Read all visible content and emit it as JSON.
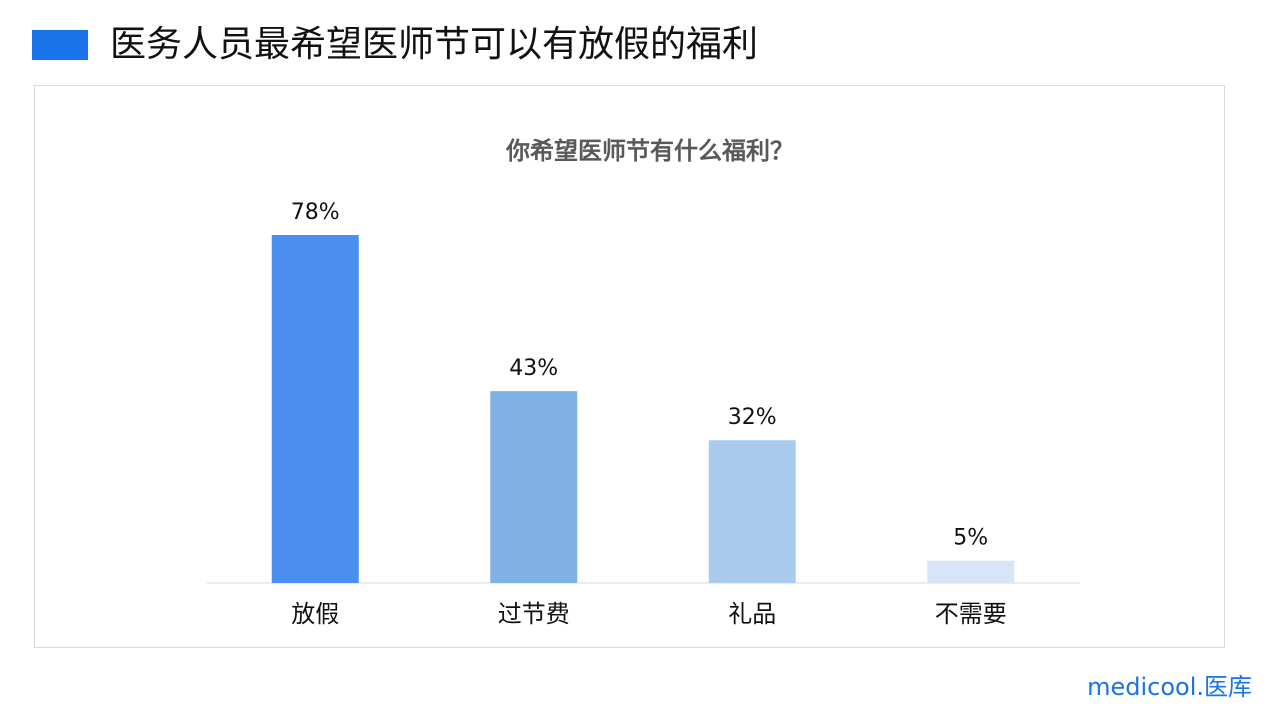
{
  "header": {
    "title": "医务人员最希望医师节可以有放假的福利"
  },
  "chart_data": {
    "type": "bar",
    "title": "你希望医师节有什么福利？",
    "categories": [
      "放假",
      "过节费",
      "礼品",
      "不需要"
    ],
    "values": [
      78,
      43,
      32,
      5
    ],
    "value_labels": [
      "78%",
      "43%",
      "32%",
      "5%"
    ],
    "colors": [
      "#4a8ef0",
      "#80b2e6",
      "#aacbee",
      "#d6e5f7"
    ]
  },
  "footer": {
    "logo": "medicool.医库"
  }
}
